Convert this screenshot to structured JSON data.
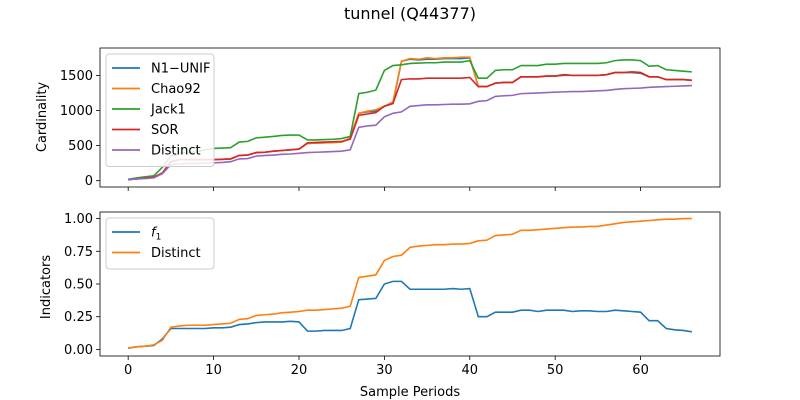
{
  "title": "tunnel (Q44377)",
  "chart_data": [
    {
      "type": "line",
      "ylabel": "Cardinality",
      "xlim": [
        -3.3,
        69.3
      ],
      "ylim": [
        -90,
        1890
      ],
      "x_ticks": [
        0,
        10,
        20,
        30,
        40,
        50,
        60
      ],
      "y_ticks": [
        0,
        500,
        1000,
        1500
      ],
      "x_tick_labels_visible": false,
      "legend_position": "upper-left",
      "series": [
        {
          "name": "N1−UNIF",
          "color": "#1f77b4",
          "x": [
            0,
            1,
            2,
            3,
            4,
            5,
            6,
            7,
            8,
            9,
            10,
            11,
            12,
            13,
            14,
            15,
            16,
            17,
            18,
            19,
            20,
            21,
            22,
            23,
            24,
            25,
            26,
            27,
            28,
            29,
            30,
            31,
            32,
            33,
            34,
            35,
            36,
            37,
            38,
            39,
            40,
            41,
            42,
            43,
            44,
            45,
            46,
            47,
            48,
            49,
            50,
            51,
            52,
            53,
            54,
            55,
            56,
            57,
            58,
            59,
            60,
            61,
            62,
            63,
            64,
            65,
            66
          ],
          "y": [
            15,
            25,
            40,
            50,
            110,
            270,
            300,
            300,
            300,
            300,
            300,
            305,
            310,
            360,
            365,
            400,
            405,
            420,
            430,
            440,
            450,
            530,
            535,
            540,
            545,
            550,
            600,
            960,
            980,
            990,
            1060,
            1100,
            1700,
            1730,
            1720,
            1730,
            1730,
            1740,
            1740,
            1740,
            1750,
            1340,
            1340,
            1390,
            1400,
            1400,
            1480,
            1480,
            1480,
            1490,
            1490,
            1500,
            1500,
            1500,
            1500,
            1500,
            1510,
            1540,
            1540,
            1540,
            1530,
            1480,
            1480,
            1440,
            1440,
            1440,
            1430
          ]
        },
        {
          "name": "Chao92",
          "color": "#ff7f0e",
          "x": [
            0,
            1,
            2,
            3,
            4,
            5,
            6,
            7,
            8,
            9,
            10,
            11,
            12,
            13,
            14,
            15,
            16,
            17,
            18,
            19,
            20,
            21,
            22,
            23,
            24,
            25,
            26,
            27,
            28,
            29,
            30,
            31,
            32,
            33,
            34,
            35,
            36,
            37,
            38,
            39,
            40,
            41,
            42,
            43,
            44,
            45,
            46,
            47,
            48,
            49,
            50,
            51,
            52,
            53,
            54,
            55,
            56,
            57,
            58,
            59,
            60,
            61,
            62,
            63,
            64,
            65,
            66
          ],
          "y": [
            15,
            25,
            40,
            50,
            110,
            270,
            300,
            300,
            300,
            300,
            300,
            305,
            310,
            360,
            365,
            400,
            405,
            420,
            430,
            440,
            450,
            530,
            535,
            540,
            545,
            550,
            610,
            960,
            990,
            1010,
            1060,
            1120,
            1700,
            1740,
            1730,
            1750,
            1740,
            1750,
            1750,
            1760,
            1760,
            1340,
            1340,
            1390,
            1400,
            1400,
            1480,
            1480,
            1480,
            1490,
            1490,
            1510,
            1500,
            1500,
            1500,
            1500,
            1510,
            1540,
            1540,
            1550,
            1540,
            1480,
            1480,
            1440,
            1440,
            1440,
            1430
          ]
        },
        {
          "name": "Jack1",
          "color": "#2ca02c",
          "x": [
            0,
            1,
            2,
            3,
            4,
            5,
            6,
            7,
            8,
            9,
            10,
            11,
            12,
            13,
            14,
            15,
            16,
            17,
            18,
            19,
            20,
            21,
            22,
            23,
            24,
            25,
            26,
            27,
            28,
            29,
            30,
            31,
            32,
            33,
            34,
            35,
            36,
            37,
            38,
            39,
            40,
            41,
            42,
            43,
            44,
            45,
            46,
            47,
            48,
            49,
            50,
            51,
            52,
            53,
            54,
            55,
            56,
            57,
            58,
            59,
            60,
            61,
            62,
            63,
            64,
            65,
            66
          ],
          "y": [
            20,
            40,
            55,
            70,
            190,
            350,
            390,
            400,
            410,
            440,
            460,
            465,
            470,
            550,
            560,
            610,
            620,
            630,
            645,
            650,
            650,
            580,
            580,
            585,
            590,
            600,
            630,
            1240,
            1260,
            1290,
            1570,
            1640,
            1650,
            1670,
            1675,
            1680,
            1680,
            1690,
            1690,
            1690,
            1710,
            1460,
            1460,
            1570,
            1580,
            1580,
            1640,
            1640,
            1640,
            1660,
            1660,
            1670,
            1670,
            1670,
            1670,
            1670,
            1680,
            1710,
            1720,
            1720,
            1710,
            1630,
            1640,
            1580,
            1570,
            1560,
            1550
          ]
        },
        {
          "name": "SOR",
          "color": "#d62728",
          "x": [
            0,
            1,
            2,
            3,
            4,
            5,
            6,
            7,
            8,
            9,
            10,
            11,
            12,
            13,
            14,
            15,
            16,
            17,
            18,
            19,
            20,
            21,
            22,
            23,
            24,
            25,
            26,
            27,
            28,
            29,
            30,
            31,
            32,
            33,
            34,
            35,
            36,
            37,
            38,
            39,
            40,
            41,
            42,
            43,
            44,
            45,
            46,
            47,
            48,
            49,
            50,
            51,
            52,
            53,
            54,
            55,
            56,
            57,
            58,
            59,
            60,
            61,
            62,
            63,
            64,
            65,
            66
          ],
          "y": [
            15,
            25,
            40,
            50,
            110,
            270,
            300,
            300,
            300,
            300,
            300,
            305,
            310,
            360,
            365,
            400,
            405,
            420,
            430,
            440,
            450,
            540,
            545,
            550,
            555,
            560,
            590,
            930,
            950,
            970,
            1060,
            1100,
            1440,
            1450,
            1450,
            1460,
            1460,
            1460,
            1460,
            1460,
            1470,
            1340,
            1340,
            1390,
            1400,
            1400,
            1480,
            1480,
            1480,
            1490,
            1490,
            1510,
            1500,
            1500,
            1500,
            1500,
            1510,
            1540,
            1540,
            1550,
            1540,
            1480,
            1480,
            1440,
            1440,
            1440,
            1430
          ]
        },
        {
          "name": "Distinct",
          "color": "#9467bd",
          "x": [
            0,
            1,
            2,
            3,
            4,
            5,
            6,
            7,
            8,
            9,
            10,
            11,
            12,
            13,
            14,
            15,
            16,
            17,
            18,
            19,
            20,
            21,
            22,
            23,
            24,
            25,
            26,
            27,
            28,
            29,
            30,
            31,
            32,
            33,
            34,
            35,
            36,
            37,
            38,
            39,
            40,
            41,
            42,
            43,
            44,
            45,
            46,
            47,
            48,
            49,
            50,
            51,
            52,
            53,
            54,
            55,
            56,
            57,
            58,
            59,
            60,
            61,
            62,
            63,
            64,
            65,
            66
          ],
          "y": [
            15,
            25,
            30,
            40,
            100,
            230,
            240,
            245,
            245,
            250,
            255,
            260,
            270,
            310,
            315,
            350,
            360,
            365,
            375,
            380,
            390,
            400,
            405,
            410,
            415,
            420,
            440,
            760,
            780,
            790,
            910,
            960,
            980,
            1060,
            1070,
            1080,
            1080,
            1085,
            1090,
            1090,
            1095,
            1130,
            1140,
            1200,
            1210,
            1215,
            1240,
            1245,
            1250,
            1255,
            1260,
            1265,
            1270,
            1270,
            1275,
            1280,
            1285,
            1300,
            1310,
            1315,
            1320,
            1330,
            1335,
            1340,
            1345,
            1350,
            1355
          ]
        }
      ]
    },
    {
      "type": "line",
      "ylabel": "Indicators",
      "xlabel": "Sample Periods",
      "xlim": [
        -3.3,
        69.3
      ],
      "ylim": [
        -0.05,
        1.05
      ],
      "x_ticks": [
        0,
        10,
        20,
        30,
        40,
        50,
        60
      ],
      "y_ticks": [
        0.0,
        0.25,
        0.5,
        0.75,
        1.0
      ],
      "y_tick_labels": [
        "0.00",
        "0.25",
        "0.50",
        "0.75",
        "1.00"
      ],
      "legend_position": "upper-left",
      "series": [
        {
          "name": "f1",
          "color": "#1f77b4",
          "x": [
            0,
            1,
            2,
            3,
            4,
            5,
            6,
            7,
            8,
            9,
            10,
            11,
            12,
            13,
            14,
            15,
            16,
            17,
            18,
            19,
            20,
            21,
            22,
            23,
            24,
            25,
            26,
            27,
            28,
            29,
            30,
            31,
            32,
            33,
            34,
            35,
            36,
            37,
            38,
            39,
            40,
            41,
            42,
            43,
            44,
            45,
            46,
            47,
            48,
            49,
            50,
            51,
            52,
            53,
            54,
            55,
            56,
            57,
            58,
            59,
            60,
            61,
            62,
            63,
            64,
            65,
            66
          ],
          "y": [
            0.01,
            0.02,
            0.025,
            0.03,
            0.08,
            0.16,
            0.16,
            0.16,
            0.16,
            0.16,
            0.165,
            0.165,
            0.17,
            0.19,
            0.195,
            0.205,
            0.21,
            0.21,
            0.21,
            0.215,
            0.21,
            0.14,
            0.14,
            0.145,
            0.145,
            0.145,
            0.16,
            0.38,
            0.385,
            0.39,
            0.5,
            0.52,
            0.52,
            0.46,
            0.46,
            0.46,
            0.46,
            0.46,
            0.465,
            0.46,
            0.465,
            0.25,
            0.25,
            0.285,
            0.285,
            0.285,
            0.3,
            0.3,
            0.29,
            0.3,
            0.3,
            0.3,
            0.29,
            0.295,
            0.295,
            0.29,
            0.29,
            0.3,
            0.295,
            0.29,
            0.285,
            0.22,
            0.22,
            0.16,
            0.15,
            0.145,
            0.135
          ]
        },
        {
          "name": "Distinct",
          "color": "#ff7f0e",
          "x": [
            0,
            1,
            2,
            3,
            4,
            5,
            6,
            7,
            8,
            9,
            10,
            11,
            12,
            13,
            14,
            15,
            16,
            17,
            18,
            19,
            20,
            21,
            22,
            23,
            24,
            25,
            26,
            27,
            28,
            29,
            30,
            31,
            32,
            33,
            34,
            35,
            36,
            37,
            38,
            39,
            40,
            41,
            42,
            43,
            44,
            45,
            46,
            47,
            48,
            49,
            50,
            51,
            52,
            53,
            54,
            55,
            56,
            57,
            58,
            59,
            60,
            61,
            62,
            63,
            64,
            65,
            66
          ],
          "y": [
            0.01,
            0.02,
            0.025,
            0.035,
            0.07,
            0.17,
            0.18,
            0.185,
            0.185,
            0.185,
            0.19,
            0.195,
            0.2,
            0.23,
            0.235,
            0.26,
            0.265,
            0.27,
            0.28,
            0.285,
            0.29,
            0.3,
            0.3,
            0.305,
            0.31,
            0.315,
            0.33,
            0.55,
            0.56,
            0.57,
            0.68,
            0.71,
            0.72,
            0.78,
            0.79,
            0.795,
            0.8,
            0.8,
            0.805,
            0.805,
            0.81,
            0.83,
            0.835,
            0.87,
            0.875,
            0.88,
            0.91,
            0.91,
            0.915,
            0.92,
            0.925,
            0.93,
            0.935,
            0.935,
            0.94,
            0.94,
            0.95,
            0.96,
            0.97,
            0.975,
            0.98,
            0.985,
            0.99,
            0.995,
            0.995,
            1.0,
            1.0
          ]
        }
      ]
    }
  ]
}
